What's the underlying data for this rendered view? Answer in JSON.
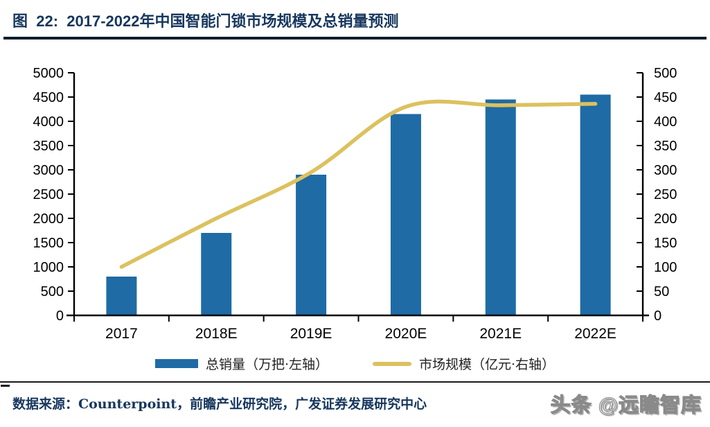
{
  "page": {
    "title": "图  22:  2017-2022年中国智能门锁市场规模及总销量预测"
  },
  "chart_data": {
    "type": "bar",
    "subtype": "combo bar + line, dual axis",
    "title": "2017-2022年中国智能门锁市场规模及总销量预测",
    "categories": [
      "2017",
      "2018E",
      "2019E",
      "2020E",
      "2021E",
      "2022E"
    ],
    "series": [
      {
        "name": "总销量（万把·左轴）",
        "type": "bar",
        "axis": "left",
        "color": "#1F6BA5",
        "values": [
          800,
          1700,
          2900,
          4150,
          4450,
          4550
        ]
      },
      {
        "name": "市场规模（亿元·右轴）",
        "type": "line",
        "axis": "right",
        "color": "#DCC15F",
        "values": [
          100,
          200,
          295,
          430,
          433,
          436
        ]
      }
    ],
    "left_axis": {
      "min": 0,
      "max": 5000,
      "step": 500
    },
    "right_axis": {
      "min": 0,
      "max": 500,
      "step": 50
    },
    "grid": false,
    "legend_position": "bottom"
  },
  "footer": {
    "source": "数据来源：Counterpoint，前瞻产业研究院，广发证券发展研究中心",
    "watermark": "头条 @远瞻智库"
  },
  "colors": {
    "title": "#17375E",
    "title-rule": "#101C2C",
    "bar": "#1F6BA5",
    "line": "#DCC15F",
    "axis": "#000000",
    "tick-text": "#000000",
    "legend-text": "#222222",
    "source": "#17375E",
    "footer-rule": "#1A1A1A",
    "watermark-fill": "#FFFFFF",
    "watermark-outline": "#8A8A8A"
  }
}
